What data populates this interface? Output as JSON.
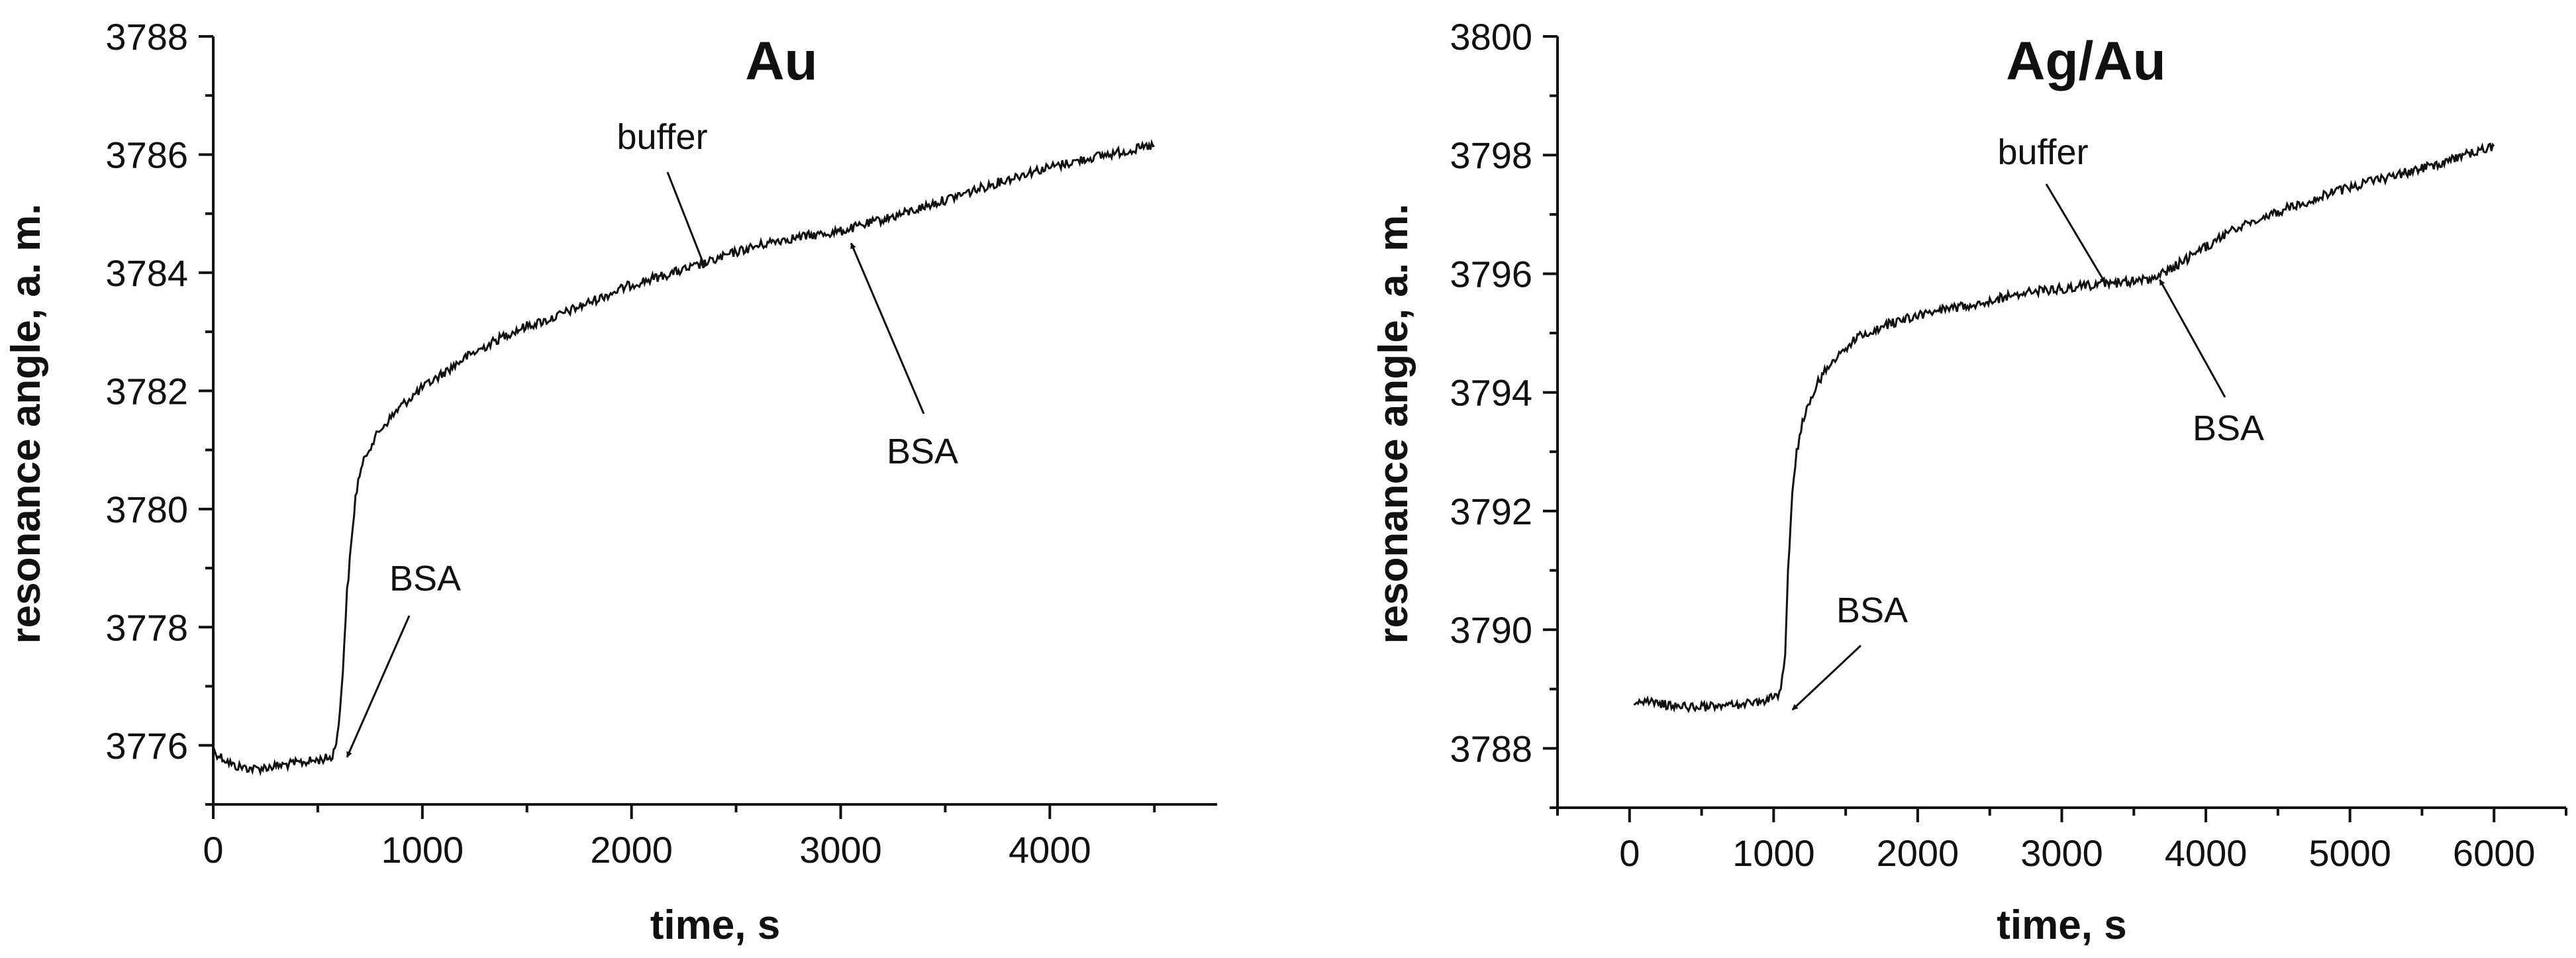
{
  "chart_data": [
    {
      "type": "line",
      "title": "Au",
      "xlabel": "time, s",
      "ylabel": "resonance angle, a. m.",
      "xlim": [
        0,
        4800
      ],
      "ylim": [
        3775,
        3788
      ],
      "x_ticks": [
        0,
        1000,
        2000,
        3000,
        4000
      ],
      "x_tick_labels": [
        "0",
        "1000",
        "2000",
        "3000",
        "4000"
      ],
      "y_ticks": [
        3776,
        3778,
        3780,
        3782,
        3784,
        3786,
        3788
      ],
      "y_tick_labels": [
        "3776",
        "3778",
        "3780",
        "3782",
        "3784",
        "3786",
        "3788"
      ],
      "grid": false,
      "series": [
        {
          "x": [
            0,
            100,
            200,
            300,
            400,
            500,
            570,
            600,
            620,
            640,
            660,
            680,
            700,
            740,
            800,
            900,
            1000,
            1100,
            1200,
            1300,
            1400,
            1500,
            1600,
            1800,
            2000,
            2200,
            2350,
            2500,
            2700,
            3000,
            3300,
            3600,
            3900,
            4200,
            4500
          ],
          "y": [
            3775.9,
            3775.65,
            3775.6,
            3775.65,
            3775.7,
            3775.75,
            3775.8,
            3776.3,
            3777.3,
            3778.6,
            3779.4,
            3780.2,
            3780.6,
            3781.0,
            3781.35,
            3781.75,
            3782.05,
            3782.3,
            3782.55,
            3782.75,
            3782.95,
            3783.1,
            3783.2,
            3783.5,
            3783.8,
            3784.0,
            3784.15,
            3784.35,
            3784.55,
            3784.7,
            3785.0,
            3785.35,
            3785.7,
            3785.95,
            3786.15
          ]
        }
      ],
      "annotations": [
        {
          "text": "buffer",
          "x": 2350,
          "y": 3784.1
        },
        {
          "text": "BSA",
          "x": 3050,
          "y": 3784.5
        },
        {
          "text": "BSA",
          "x": 640,
          "y": 3775.8
        }
      ]
    },
    {
      "type": "line",
      "title": "Ag/Au",
      "xlabel": "time, s",
      "ylabel": "resonance angle, a. m.",
      "xlim": [
        -500,
        6500
      ],
      "ylim": [
        3787,
        3800
      ],
      "x_ticks": [
        0,
        1000,
        2000,
        3000,
        4000,
        5000,
        6000
      ],
      "x_tick_labels": [
        "0",
        "1000",
        "2000",
        "3000",
        "4000",
        "5000",
        "6000"
      ],
      "y_ticks": [
        3788,
        3790,
        3792,
        3794,
        3796,
        3798,
        3800
      ],
      "y_tick_labels": [
        "3788",
        "3790",
        "3792",
        "3794",
        "3796",
        "3798",
        "3800"
      ],
      "grid": false,
      "series": [
        {
          "x": [
            30,
            200,
            400,
            600,
            800,
            1000,
            1050,
            1080,
            1100,
            1130,
            1160,
            1200,
            1250,
            1300,
            1400,
            1500,
            1600,
            1800,
            2000,
            2200,
            2500,
            2800,
            3000,
            3200,
            3400,
            3600,
            3700,
            3800,
            4000,
            4200,
            4500,
            4800,
            5000,
            5300,
            5600,
            5800,
            6000
          ],
          "y": [
            3788.8,
            3788.75,
            3788.7,
            3788.7,
            3788.75,
            3788.85,
            3788.95,
            3789.6,
            3791.0,
            3792.3,
            3793.0,
            3793.5,
            3793.85,
            3794.15,
            3794.5,
            3794.75,
            3794.95,
            3795.15,
            3795.3,
            3795.4,
            3795.55,
            3795.7,
            3795.75,
            3795.8,
            3795.85,
            3795.9,
            3796.0,
            3796.15,
            3796.45,
            3796.75,
            3797.05,
            3797.3,
            3797.45,
            3797.65,
            3797.85,
            3798.0,
            3798.15
          ]
        }
      ],
      "annotations": [
        {
          "text": "buffer",
          "x": 3300,
          "y": 3795.85
        },
        {
          "text": "BSA",
          "x": 3680,
          "y": 3795.9
        },
        {
          "text": "BSA",
          "x": 1130,
          "y": 3788.65
        }
      ]
    }
  ]
}
